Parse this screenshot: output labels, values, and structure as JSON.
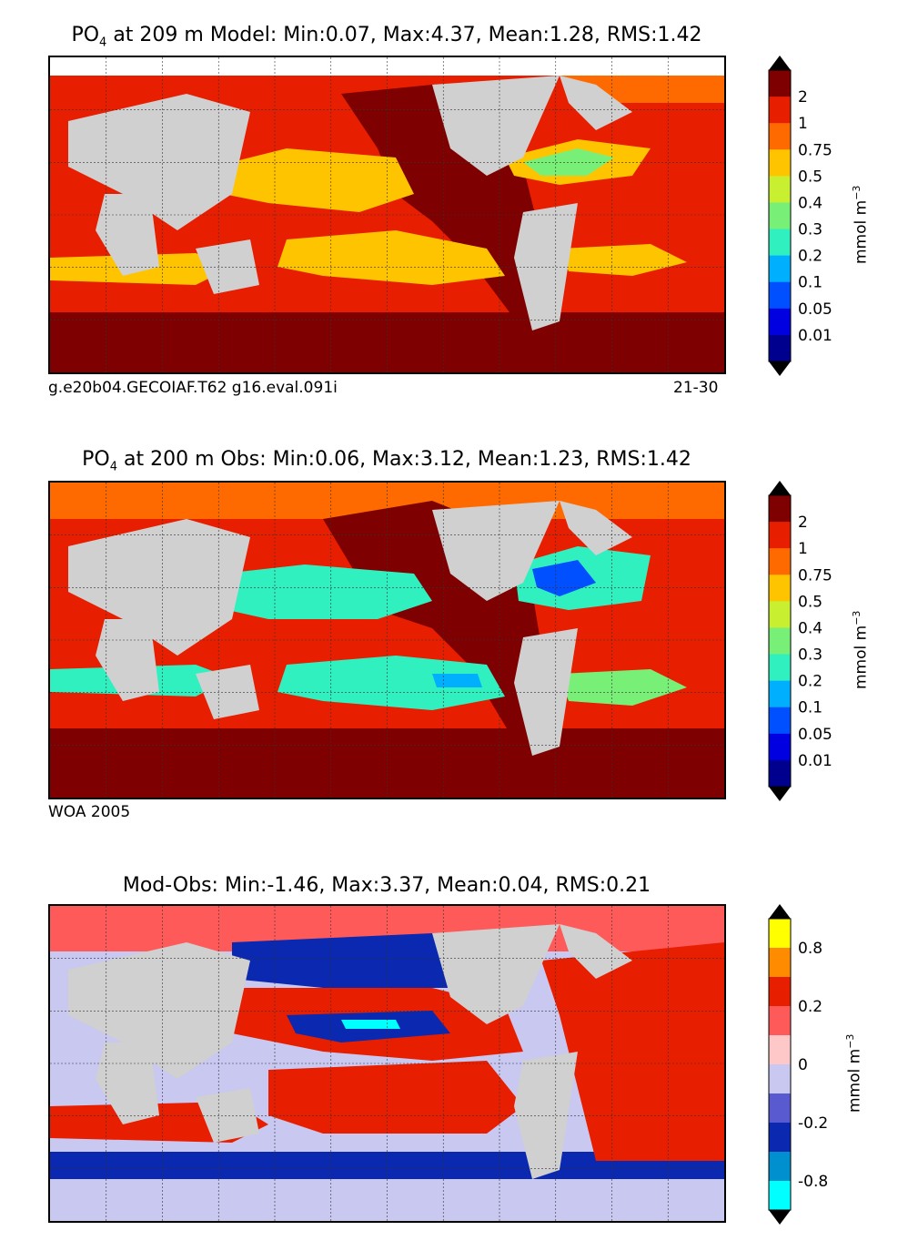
{
  "panels": [
    {
      "title_prefix": "PO",
      "title_sub": "4",
      "title_rest": " at 209 m Model: Min:0.07, Max:4.37, Mean:1.28, RMS:1.42",
      "footer_left": "g.e20b04.GECOIAF.T62 g16.eval.091i",
      "footer_right": "21-30"
    },
    {
      "title_prefix": "PO",
      "title_sub": "4",
      "title_rest": " at 200 m Obs: Min:0.06, Max:3.12, Mean:1.23, RMS:1.42",
      "footer_left": "WOA 2005",
      "footer_right": ""
    },
    {
      "title_prefix": "",
      "title_sub": "",
      "title_rest": "Mod-Obs: Min:-1.46, Max:3.37, Mean:0.04, RMS:0.21",
      "footer_left": "",
      "footer_right": ""
    }
  ],
  "colorbar_main": {
    "ticks": [
      "2",
      "1",
      "0.75",
      "0.5",
      "0.4",
      "0.3",
      "0.2",
      "0.1",
      "0.05",
      "0.01"
    ],
    "colors": [
      "#7f0000",
      "#e81e00",
      "#ff6a00",
      "#ffc400",
      "#c8f030",
      "#78f078",
      "#30f0c0",
      "#00b0ff",
      "#0050ff",
      "#0000e0",
      "#00008f"
    ],
    "unit": "mmol m",
    "unit_sup": "−3"
  },
  "colorbar_diff": {
    "ticks": [
      "0.8",
      "0.2",
      "0",
      "-0.2",
      "-0.8"
    ],
    "colors": [
      "#ffff00",
      "#ff8c00",
      "#e81e00",
      "#ff5a5a",
      "#ffc8c8",
      "#c8c8f0",
      "#5a5ad0",
      "#0a28b0",
      "#0090d0",
      "#00ffff"
    ],
    "unit": "mmol m",
    "unit_sup": "−3"
  }
}
